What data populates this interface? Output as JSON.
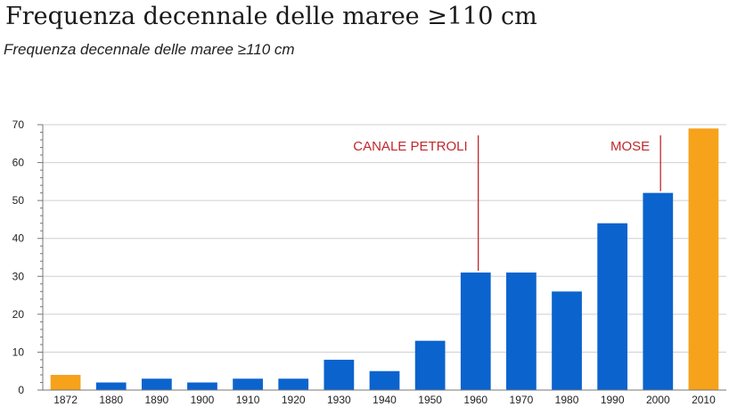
{
  "title": "Frequenza decennale delle maree ≥110 cm",
  "subtitle": "Frequenza decennale delle maree ≥110 cm",
  "colors": {
    "bar": "#0b63ce",
    "highlight": "#f7a21b",
    "annotation": "#c0272d",
    "grid": "#cfcfcf"
  },
  "chart_data": {
    "type": "bar",
    "categories": [
      "1872",
      "1880",
      "1890",
      "1900",
      "1910",
      "1920",
      "1930",
      "1940",
      "1950",
      "1960",
      "1970",
      "1980",
      "1990",
      "2000",
      "2010"
    ],
    "values": [
      4,
      2,
      3,
      2,
      3,
      3,
      8,
      5,
      13,
      31,
      31,
      26,
      44,
      52,
      69
    ],
    "highlighted": [
      "1872",
      "2010"
    ],
    "ylim": [
      0,
      70
    ],
    "yticks": [
      0,
      10,
      20,
      30,
      40,
      50,
      60,
      70
    ],
    "grid": true,
    "annotations": [
      {
        "text": "CANALE PETROLI",
        "category": "1960"
      },
      {
        "text": "MOSE",
        "category": "2000"
      }
    ]
  }
}
